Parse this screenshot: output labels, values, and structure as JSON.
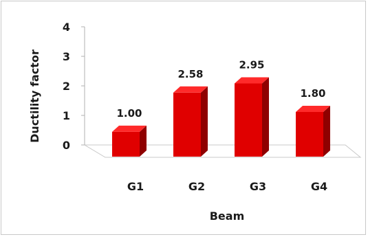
{
  "chart_data": {
    "type": "bar",
    "categories": [
      "G1",
      "G2",
      "G3",
      "G4"
    ],
    "values": [
      1.0,
      2.58,
      2.95,
      1.8
    ],
    "value_labels": [
      "1.00",
      "2.58",
      "2.95",
      "1.80"
    ],
    "xlabel": "Beam",
    "ylabel": "Ductility factor",
    "ylim": [
      0,
      4
    ],
    "yticks": [
      "0",
      "1",
      "2",
      "3",
      "4"
    ],
    "bar_color": "#e00000",
    "bar_side_color": "#8f0000",
    "bar_top_color": "#ff2a2a",
    "grid": false,
    "style": "3d-column"
  }
}
